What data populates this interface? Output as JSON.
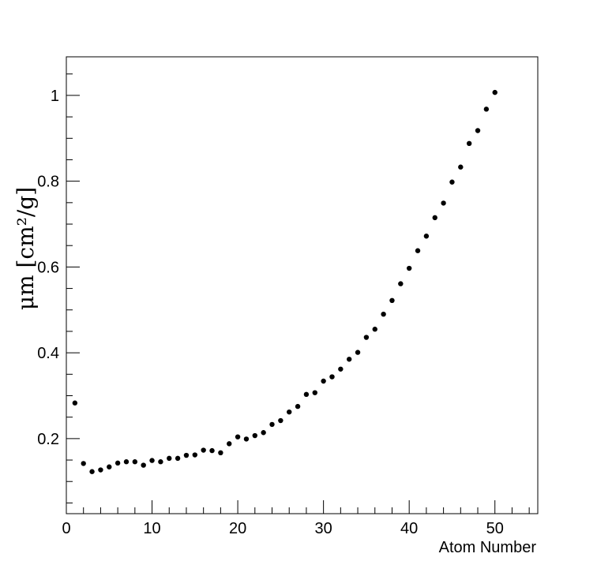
{
  "chart_data": {
    "type": "scatter",
    "title": "",
    "xlabel": "Atom Number",
    "ylabel": "μm [cm²/g]",
    "xlim": [
      0,
      55
    ],
    "ylim": [
      0.025,
      1.09
    ],
    "xticks": [
      0,
      10,
      20,
      30,
      40,
      50
    ],
    "yticks": [
      0.2,
      0.4,
      0.6,
      0.8,
      1
    ],
    "grid": false,
    "legend": "none",
    "marker_color": "#000000",
    "series": [
      {
        "x": [
          1,
          2,
          3,
          4,
          5,
          6,
          7,
          8,
          9,
          10,
          11,
          12,
          13,
          14,
          15,
          16,
          17,
          18,
          19,
          20,
          21,
          22,
          23,
          24,
          25,
          26,
          27,
          28,
          29,
          30,
          31,
          32,
          33,
          34,
          35,
          36,
          37,
          38,
          39,
          40,
          41,
          42,
          43,
          44,
          45,
          46,
          47,
          48,
          49,
          50
        ],
        "y": [
          0.283,
          0.142,
          0.123,
          0.127,
          0.134,
          0.143,
          0.146,
          0.146,
          0.138,
          0.149,
          0.146,
          0.154,
          0.154,
          0.161,
          0.162,
          0.173,
          0.172,
          0.167,
          0.188,
          0.204,
          0.199,
          0.207,
          0.214,
          0.233,
          0.242,
          0.262,
          0.275,
          0.303,
          0.307,
          0.334,
          0.344,
          0.362,
          0.385,
          0.401,
          0.436,
          0.455,
          0.49,
          0.522,
          0.561,
          0.597,
          0.638,
          0.672,
          0.715,
          0.749,
          0.798,
          0.833,
          0.888,
          0.918,
          0.968,
          1.007
        ]
      }
    ]
  }
}
